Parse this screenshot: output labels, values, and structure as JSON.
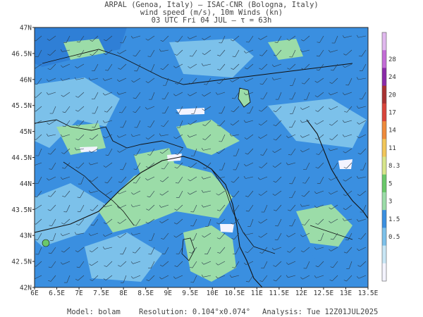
{
  "header": {
    "line1": "ARPAL (Genoa, Italy)  —  ISAC-CNR (Bologna, Italy)",
    "line2": "wind speed (m/s), 10m Winds (kn)",
    "line3": "03 UTC Fri 04 JUL  —  τ = 63h"
  },
  "map": {
    "lat_ticks": [
      "47N",
      "46.5N",
      "46N",
      "45.5N",
      "45N",
      "44.5N",
      "44N",
      "43.5N",
      "43N",
      "42.5N",
      "42N"
    ],
    "lon_ticks": [
      "6E",
      "6.5E",
      "7E",
      "7.5E",
      "8E",
      "8.5E",
      "9E",
      "9.5E",
      "10E",
      "10.5E",
      "11E",
      "11.5E",
      "12E",
      "12.5E",
      "13E",
      "13.5E"
    ],
    "lat_range": [
      42,
      47
    ],
    "lon_range": [
      6,
      13.5
    ]
  },
  "colorbar": {
    "labels": [
      "28",
      "24",
      "20",
      "17",
      "14",
      "11",
      "8.3",
      "5",
      "3",
      "1.5",
      "0.5"
    ],
    "colors": [
      "#f4f4ff",
      "#c8e6f5",
      "#7cc1ea",
      "#3a8fe0",
      "#9bdca8",
      "#6ac86a",
      "#d6e58a",
      "#f2c659",
      "#ef8a3a",
      "#d9443a",
      "#a83232",
      "#8a2aa8",
      "#c36bd6",
      "#e0b8ee"
    ]
  },
  "footer": {
    "model_label": "Model:",
    "model_value": "bolam",
    "resolution_label": "Resolution:",
    "resolution_value": "0.104°x0.074°",
    "analysis_label": "Analysis:",
    "analysis_value": "Tue 12Z01JUL2025"
  }
}
